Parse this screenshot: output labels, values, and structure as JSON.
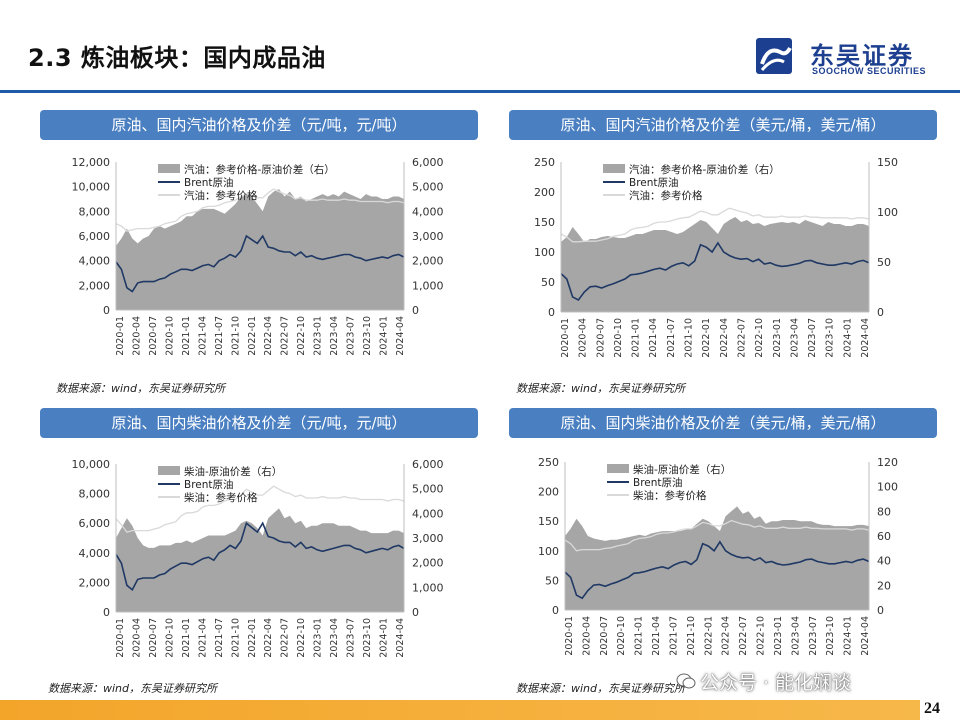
{
  "title": "2.3 炼油板块：国内成品油",
  "brand": {
    "name": "东吴证券",
    "sub": "SOOCHOW SECURITIES",
    "color": "#1d3f8f"
  },
  "page_number": "24",
  "watermark": "公众号 · 能化娴谈",
  "colors": {
    "area": "#a6a6a6",
    "brent": "#1f3864",
    "ref": "#d9d9d9",
    "banner": "#4a7fc1"
  },
  "panels": [
    {
      "banner": "原油、国内汽油价格及价差（元/吨，元/吨）",
      "source": "数据来源：wind，东吴证券研究所"
    },
    {
      "banner": "原油、国内汽油价格及价差（美元/桶，美元/桶）",
      "source": "数据来源：wind，东吴证券研究所"
    },
    {
      "banner": "原油、国内柴油价格及价差（元/吨，元/吨）",
      "source": "数据来源：wind，东吴证券研究所"
    },
    {
      "banner": "原油、国内柴油价格及价差（美元/桶，美元/桶）",
      "source": "数据来源：wind，东吴证券研究所"
    }
  ],
  "x_ticks": [
    "2020-01",
    "2020-04",
    "2020-07",
    "2020-10",
    "2021-01",
    "2021-04",
    "2021-07",
    "2021-10",
    "2022-01",
    "2022-04",
    "2022-07",
    "2022-10",
    "2023-01",
    "2023-04",
    "2023-07",
    "2023-10",
    "2024-01",
    "2024-04"
  ],
  "chart_data": [
    {
      "type": "line",
      "title": "",
      "legend": [
        "汽油：参考价格-原油价差（右）",
        "Brent原油",
        "汽油：参考价格"
      ],
      "legend_placement": "top-left",
      "grid": false,
      "y_left": {
        "ticks": [
          "0",
          "2,000",
          "4,000",
          "6,000",
          "8,000",
          "10,000",
          "12,000"
        ],
        "range": [
          0,
          12000
        ]
      },
      "y_right": {
        "ticks": [
          "0",
          "1,000",
          "2,000",
          "3,000",
          "4,000",
          "5,000",
          "6,000"
        ],
        "range": [
          0,
          6000
        ]
      },
      "series": [
        {
          "name": "汽油：参考价格-原油价差（右）",
          "kind": "area",
          "axis": "right",
          "values": [
            2600,
            2900,
            3300,
            2900,
            2700,
            2900,
            3000,
            3300,
            3400,
            3300,
            3400,
            3500,
            3600,
            3800,
            3800,
            4000,
            4100,
            4100,
            4100,
            4000,
            3900,
            4100,
            4300,
            4600,
            4700,
            4600,
            4300,
            4000,
            4600,
            4800,
            4900,
            4600,
            4800,
            4500,
            4600,
            4400,
            4500,
            4600,
            4700,
            4600,
            4700,
            4600,
            4800,
            4700,
            4600,
            4500,
            4700,
            4600,
            4600,
            4500,
            4500,
            4600,
            4600,
            4500
          ]
        },
        {
          "name": "Brent原油",
          "kind": "line",
          "axis": "left",
          "values": [
            3900,
            3300,
            1800,
            1500,
            2200,
            2300,
            2300,
            2300,
            2500,
            2600,
            2900,
            3100,
            3300,
            3300,
            3200,
            3400,
            3600,
            3700,
            3500,
            4000,
            4200,
            4500,
            4300,
            4800,
            6000,
            5700,
            5400,
            6000,
            5100,
            5000,
            4800,
            4700,
            4700,
            4400,
            4700,
            4300,
            4400,
            4200,
            4100,
            4200,
            4300,
            4400,
            4500,
            4500,
            4300,
            4200,
            4000,
            4100,
            4200,
            4300,
            4200,
            4400,
            4500,
            4300
          ]
        },
        {
          "name": "汽油：参考价格",
          "kind": "line",
          "axis": "left",
          "values": [
            7000,
            6800,
            6400,
            6500,
            6600,
            6600,
            6600,
            6700,
            6800,
            7000,
            7100,
            7200,
            7600,
            7800,
            7900,
            8000,
            8300,
            8400,
            8400,
            8500,
            8700,
            8800,
            8900,
            9200,
            9400,
            9300,
            9100,
            9100,
            9500,
            9800,
            9600,
            9400,
            9300,
            9000,
            9100,
            8900,
            8900,
            8900,
            9000,
            8900,
            8900,
            8900,
            9000,
            8900,
            8900,
            8800,
            8800,
            8800,
            8800,
            8800,
            8700,
            8800,
            8800,
            8700
          ]
        }
      ]
    },
    {
      "type": "line",
      "title": "",
      "legend": [
        "汽油：参考价格-原油价差（右）",
        "Brent原油",
        "汽油：参考价格"
      ],
      "legend_placement": "top-left",
      "grid": false,
      "y_left": {
        "ticks": [
          "0",
          "50",
          "100",
          "150",
          "200",
          "250"
        ],
        "range": [
          0,
          250
        ]
      },
      "y_right": {
        "ticks": [
          "0",
          "50",
          "100",
          "150"
        ],
        "range": [
          0,
          150
        ]
      },
      "series": [
        {
          "name": "汽油：参考价格-原油价差（右）",
          "kind": "area",
          "axis": "right",
          "values": [
            70,
            75,
            85,
            78,
            70,
            73,
            73,
            75,
            76,
            75,
            74,
            74,
            76,
            78,
            78,
            80,
            82,
            82,
            82,
            80,
            78,
            80,
            84,
            88,
            92,
            90,
            84,
            78,
            88,
            92,
            95,
            90,
            92,
            88,
            89,
            86,
            88,
            89,
            90,
            89,
            90,
            88,
            92,
            90,
            88,
            86,
            90,
            88,
            88,
            86,
            86,
            88,
            88,
            86
          ]
        },
        {
          "name": "Brent原油",
          "kind": "line",
          "axis": "left",
          "values": [
            64,
            55,
            25,
            20,
            33,
            42,
            43,
            40,
            44,
            47,
            51,
            55,
            62,
            63,
            65,
            68,
            71,
            73,
            70,
            76,
            80,
            82,
            77,
            85,
            112,
            108,
            100,
            115,
            100,
            94,
            90,
            88,
            89,
            84,
            88,
            80,
            82,
            78,
            76,
            77,
            79,
            81,
            85,
            86,
            82,
            80,
            78,
            78,
            80,
            82,
            80,
            84,
            86,
            82
          ]
        },
        {
          "name": "汽油：参考价格",
          "kind": "line",
          "axis": "left",
          "values": [
            130,
            125,
            117,
            117,
            118,
            118,
            118,
            120,
            122,
            126,
            128,
            130,
            137,
            140,
            141,
            143,
            148,
            150,
            150,
            152,
            155,
            157,
            158,
            163,
            168,
            166,
            162,
            162,
            168,
            173,
            170,
            167,
            165,
            160,
            162,
            158,
            158,
            158,
            160,
            158,
            158,
            158,
            160,
            158,
            158,
            157,
            157,
            157,
            157,
            157,
            155,
            157,
            157,
            155
          ]
        }
      ]
    },
    {
      "type": "line",
      "title": "",
      "legend": [
        "柴油-原油价差（右）",
        "Brent原油",
        "柴油：参考价格"
      ],
      "legend_placement": "top-left",
      "grid": false,
      "y_left": {
        "ticks": [
          "0",
          "2,000",
          "4,000",
          "6,000",
          "8,000",
          "10,000"
        ],
        "range": [
          0,
          10000
        ]
      },
      "y_right": {
        "ticks": [
          "0",
          "1,000",
          "2,000",
          "3,000",
          "4,000",
          "5,000",
          "6,000"
        ],
        "range": [
          0,
          6000
        ]
      },
      "series": [
        {
          "name": "柴油-原油价差（右）",
          "kind": "area",
          "axis": "right",
          "values": [
            3000,
            3400,
            3800,
            3500,
            3000,
            2700,
            2600,
            2600,
            2700,
            2700,
            2700,
            2800,
            2800,
            2900,
            2800,
            2900,
            3000,
            3100,
            3100,
            3100,
            3100,
            3200,
            3300,
            3600,
            3700,
            3600,
            3400,
            3100,
            3800,
            4000,
            4200,
            3800,
            3900,
            3600,
            3700,
            3400,
            3500,
            3500,
            3600,
            3600,
            3600,
            3500,
            3500,
            3500,
            3400,
            3300,
            3300,
            3200,
            3200,
            3200,
            3200,
            3300,
            3300,
            3200
          ]
        },
        {
          "name": "Brent原油",
          "kind": "line",
          "axis": "left",
          "values": [
            3900,
            3300,
            1800,
            1500,
            2200,
            2300,
            2300,
            2300,
            2500,
            2600,
            2900,
            3100,
            3300,
            3300,
            3200,
            3400,
            3600,
            3700,
            3500,
            4000,
            4200,
            4500,
            4300,
            4800,
            6000,
            5700,
            5400,
            6000,
            5100,
            5000,
            4800,
            4700,
            4700,
            4400,
            4700,
            4300,
            4400,
            4200,
            4100,
            4200,
            4300,
            4400,
            4500,
            4500,
            4300,
            4200,
            4000,
            4100,
            4200,
            4300,
            4200,
            4400,
            4500,
            4300
          ]
        },
        {
          "name": "柴油：参考价格",
          "kind": "line",
          "axis": "left",
          "values": [
            6300,
            5900,
            5400,
            5500,
            5500,
            5500,
            5500,
            5600,
            5700,
            5900,
            6000,
            6100,
            6500,
            6700,
            6700,
            6800,
            7100,
            7200,
            7200,
            7300,
            7500,
            7600,
            7600,
            7900,
            8300,
            8100,
            7900,
            7900,
            8200,
            8500,
            8300,
            8100,
            8000,
            7800,
            7900,
            7700,
            7700,
            7700,
            7800,
            7700,
            7700,
            7700,
            7800,
            7700,
            7700,
            7600,
            7600,
            7600,
            7600,
            7600,
            7500,
            7600,
            7600,
            7500
          ]
        }
      ]
    },
    {
      "type": "line",
      "title": "",
      "legend": [
        "柴油-原油价差（右）",
        "Brent原油",
        "柴油：参考价格"
      ],
      "legend_placement": "top-left",
      "grid": false,
      "y_left": {
        "ticks": [
          "0",
          "50",
          "100",
          "150",
          "200",
          "250"
        ],
        "range": [
          0,
          250
        ]
      },
      "y_right": {
        "ticks": [
          "0",
          "20",
          "40",
          "60",
          "80",
          "100",
          "120"
        ],
        "range": [
          0,
          120
        ]
      },
      "series": [
        {
          "name": "柴油-原油价差（右）",
          "kind": "area",
          "axis": "right",
          "values": [
            60,
            66,
            74,
            68,
            60,
            58,
            57,
            56,
            57,
            57,
            58,
            59,
            60,
            61,
            60,
            62,
            63,
            64,
            64,
            64,
            64,
            65,
            66,
            70,
            74,
            72,
            68,
            64,
            76,
            80,
            84,
            78,
            80,
            74,
            76,
            70,
            72,
            72,
            73,
            73,
            73,
            72,
            72,
            72,
            70,
            69,
            69,
            68,
            68,
            68,
            68,
            69,
            69,
            68
          ]
        },
        {
          "name": "Brent原油",
          "kind": "line",
          "axis": "left",
          "values": [
            64,
            55,
            25,
            20,
            33,
            42,
            43,
            40,
            44,
            47,
            51,
            55,
            62,
            63,
            65,
            68,
            71,
            73,
            70,
            76,
            80,
            82,
            77,
            85,
            112,
            108,
            100,
            115,
            100,
            94,
            90,
            88,
            89,
            84,
            88,
            80,
            82,
            78,
            76,
            77,
            79,
            81,
            85,
            86,
            82,
            80,
            78,
            78,
            80,
            82,
            80,
            84,
            86,
            82
          ]
        },
        {
          "name": "柴油：参考价格",
          "kind": "line",
          "axis": "left",
          "values": [
            118,
            112,
            100,
            102,
            102,
            102,
            102,
            104,
            105,
            108,
            110,
            112,
            118,
            121,
            122,
            124,
            128,
            130,
            130,
            132,
            135,
            137,
            137,
            142,
            148,
            146,
            142,
            142,
            146,
            151,
            148,
            145,
            144,
            140,
            142,
            138,
            138,
            138,
            140,
            138,
            138,
            138,
            140,
            138,
            138,
            137,
            137,
            137,
            137,
            137,
            135,
            137,
            137,
            135
          ]
        }
      ]
    }
  ]
}
